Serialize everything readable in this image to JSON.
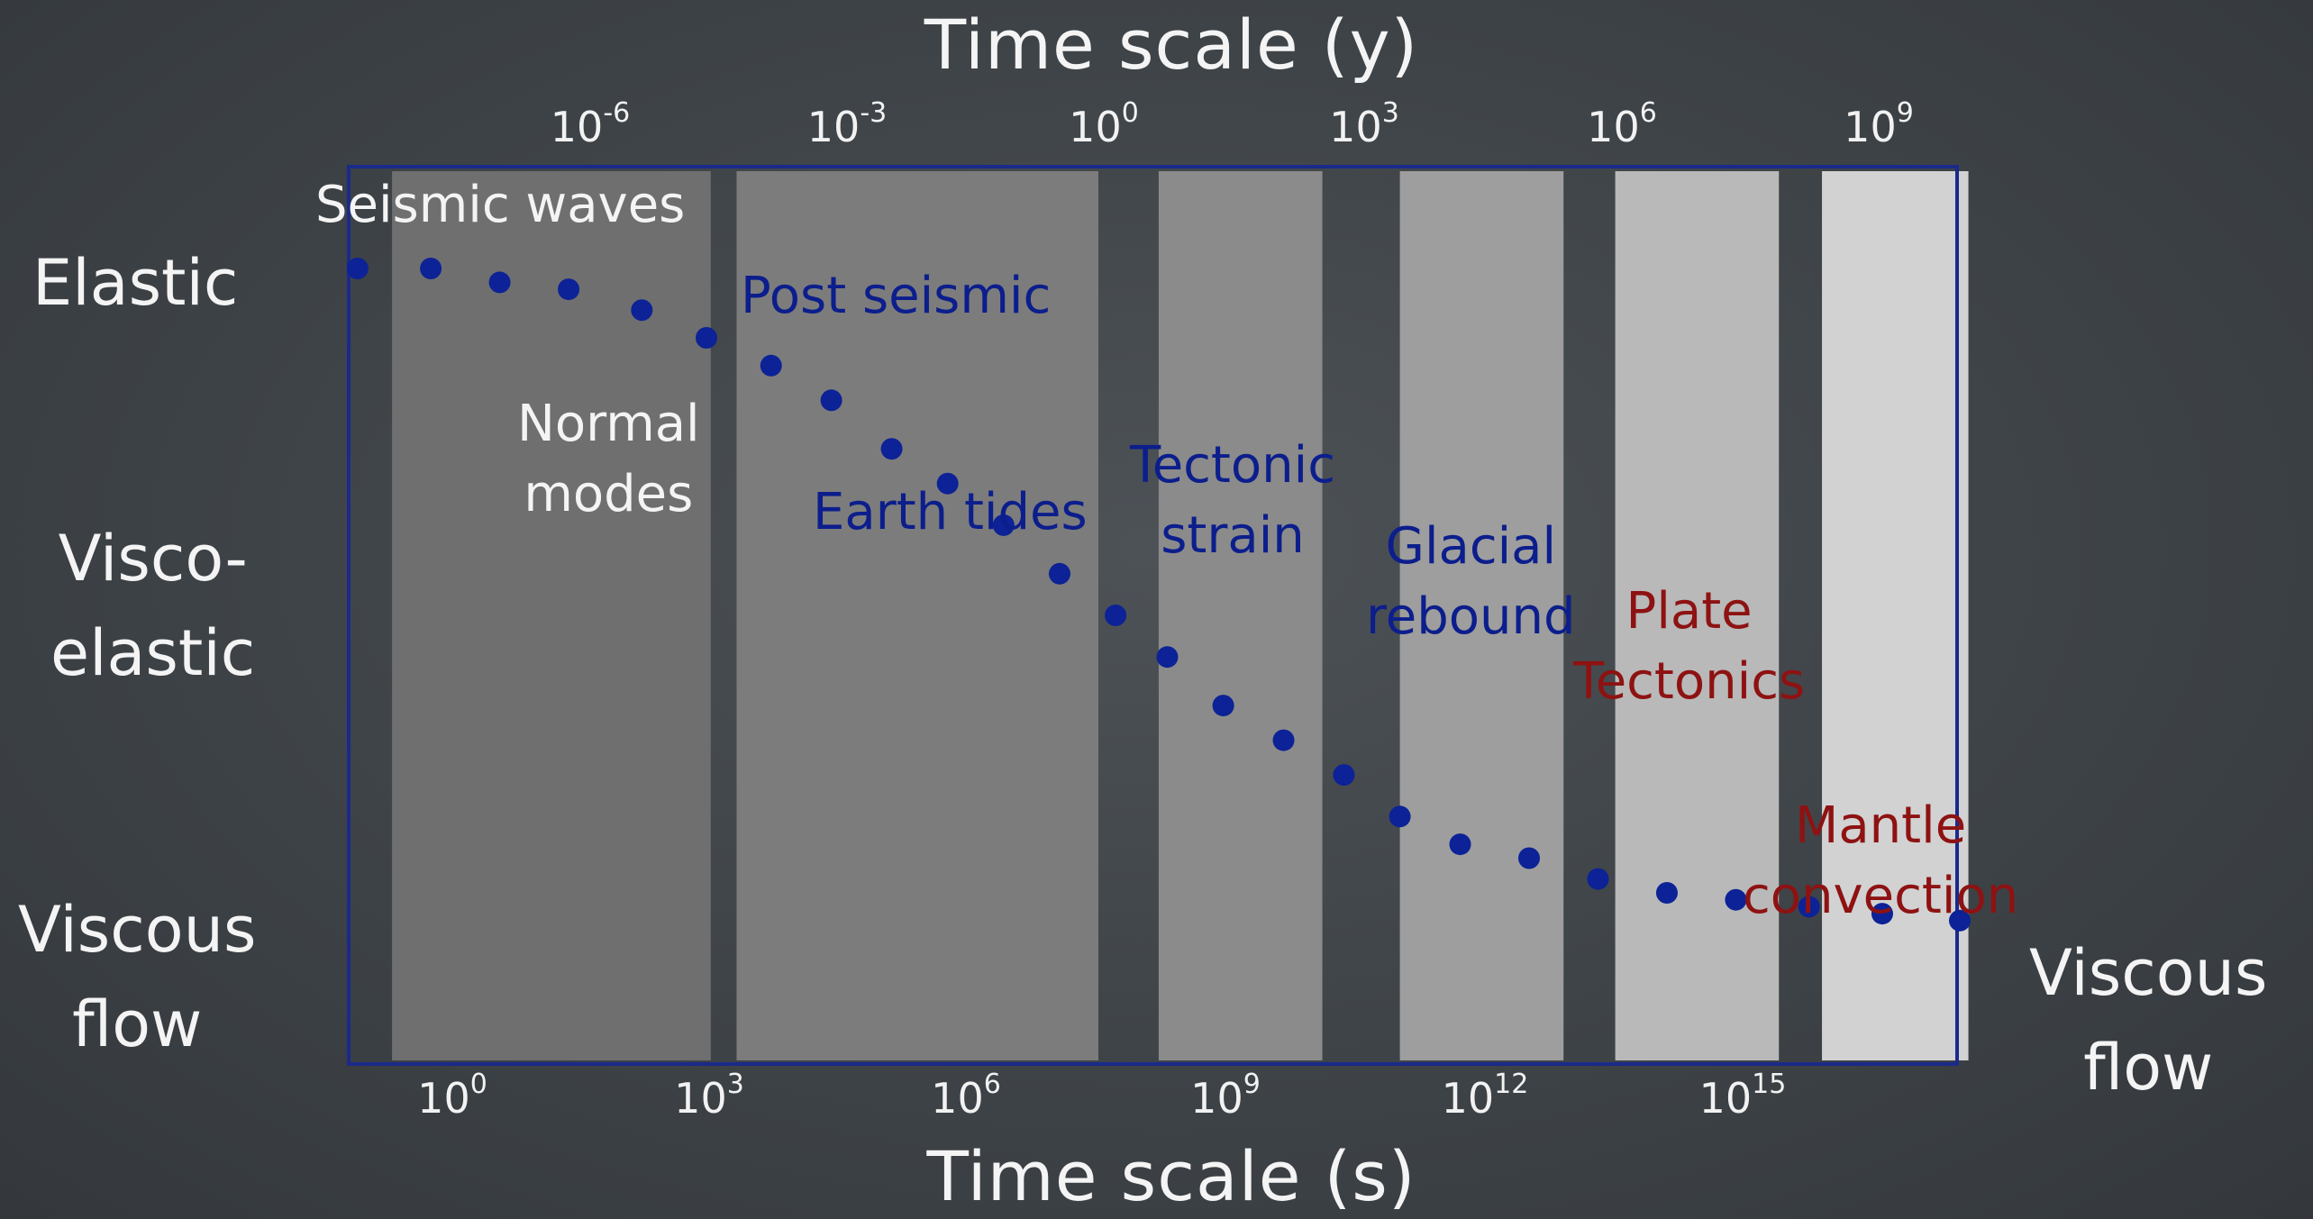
{
  "chart_data": {
    "type": "scatter",
    "title_top": "Time scale (y)",
    "xlabel": "Time scale (s)",
    "top_ticks": [
      {
        "base": "10",
        "exp": "-6"
      },
      {
        "base": "10",
        "exp": "-3"
      },
      {
        "base": "10",
        "exp": "0"
      },
      {
        "base": "10",
        "exp": "3"
      },
      {
        "base": "10",
        "exp": "6"
      },
      {
        "base": "10",
        "exp": "9"
      }
    ],
    "bottom_ticks": [
      {
        "base": "10",
        "exp": "0"
      },
      {
        "base": "10",
        "exp": "3"
      },
      {
        "base": "10",
        "exp": "6"
      },
      {
        "base": "10",
        "exp": "9"
      },
      {
        "base": "10",
        "exp": "12"
      },
      {
        "base": "10",
        "exp": "15"
      }
    ],
    "y_categories": [
      "Elastic",
      "Visco-elastic",
      "Viscous flow"
    ],
    "left_labels": {
      "elastic": "Elastic",
      "visco_1": "Visco-",
      "visco_2": "elastic",
      "viscous_1": "Viscous",
      "viscous_2": "flow"
    },
    "right_labels": {
      "viscous_1": "Viscous",
      "viscous_2": "flow"
    },
    "x_log_range": [
      -2,
      18.5
    ],
    "bands_log_seconds": [
      [
        -0.7,
        3.0,
        "#6f6f6f"
      ],
      [
        3.3,
        7.5,
        "#7c7c7c"
      ],
      [
        8.2,
        10.1,
        "#8b8b8b"
      ],
      [
        11.0,
        12.9,
        "#9e9e9e"
      ],
      [
        13.5,
        15.4,
        "#b9b9b9"
      ],
      [
        15.9,
        17.6,
        "#d2d2d2"
      ]
    ],
    "points_log_seconds": [
      -1.1,
      -0.25,
      0.55,
      1.35,
      2.2,
      2.95,
      3.7,
      4.4,
      5.1,
      5.75,
      6.4,
      7.05,
      7.7,
      8.3,
      8.95,
      9.65,
      10.35,
      11.0,
      11.7,
      12.5,
      13.3,
      14.1,
      14.9,
      15.75,
      16.6,
      17.5
    ],
    "points_level": [
      0.0,
      0.0,
      0.02,
      0.03,
      0.06,
      0.1,
      0.14,
      0.19,
      0.26,
      0.31,
      0.37,
      0.44,
      0.5,
      0.56,
      0.63,
      0.68,
      0.73,
      0.79,
      0.83,
      0.85,
      0.88,
      0.9,
      0.91,
      0.92,
      0.93,
      0.94
    ],
    "point_color": "#0c2296"
  },
  "annotations": {
    "seismic_waves": "Seismic waves",
    "post_seismic": "Post seismic",
    "normal_modes_1": "Normal",
    "normal_modes_2": "modes",
    "earth_tides": "Earth tides",
    "tectonic_1": "Tectonic",
    "tectonic_2": "strain",
    "glacial_1": "Glacial",
    "glacial_2": "rebound",
    "plate_1": "Plate",
    "plate_2": "Tectonics",
    "mantle_1": "Mantle",
    "mantle_2": "convection"
  },
  "colors": {
    "blue_text": "#0c1e8c",
    "red_text": "#8e1212",
    "frame": "#1a2a8a"
  }
}
